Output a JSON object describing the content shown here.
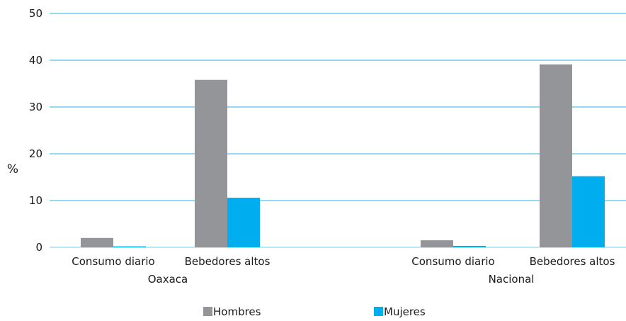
{
  "chart_data": {
    "type": "bar",
    "ylabel": "%",
    "ylim": [
      0,
      50
    ],
    "yticks": [
      0,
      10,
      20,
      30,
      40,
      50
    ],
    "grid": true,
    "legend_position": "bottom",
    "groups": [
      {
        "label": "Oaxaca",
        "categories": [
          "Consumo diario",
          "Bebedores altos"
        ]
      },
      {
        "label": "Nacional",
        "categories": [
          "Consumo diario",
          "Bebedores altos"
        ]
      }
    ],
    "series": [
      {
        "name": "Hombres",
        "color": "#939598",
        "values": [
          2.0,
          35.8,
          1.5,
          39.1
        ]
      },
      {
        "name": "Mujeres",
        "color": "#00aeef",
        "values": [
          0.2,
          10.6,
          0.3,
          15.2
        ]
      }
    ],
    "gridline_color": "#29b6ea"
  }
}
